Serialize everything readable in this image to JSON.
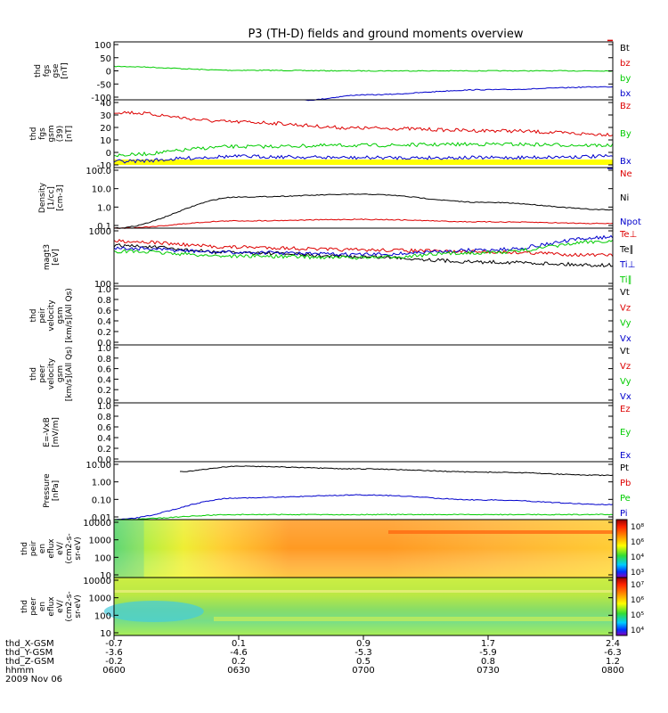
{
  "title": "P3 (TH-D) fields and ground moments overview",
  "colors": {
    "black": "#000000",
    "red": "#dd0000",
    "green": "#00cc00",
    "blue": "#0000cc",
    "yellow": "#ffff00",
    "orange": "#ff8000"
  },
  "panels": [
    {
      "id": "fgs-gse",
      "ylabel": [
        "thd",
        "fgs",
        "gse",
        "[nT]"
      ],
      "ticks": [
        "100",
        "50",
        "0",
        "-50",
        "-100"
      ],
      "legend": [
        {
          "text": "Bt",
          "color": "black"
        },
        {
          "text": "bz",
          "color": "red"
        },
        {
          "text": "by",
          "color": "green"
        },
        {
          "text": "bx",
          "color": "blue"
        }
      ]
    },
    {
      "id": "fgs-gsm",
      "ylabel": [
        "thd",
        "fgs",
        "gsm",
        "(39)",
        "[nT]"
      ],
      "ticks": [
        "40",
        "30",
        "20",
        "10",
        "0",
        "-10"
      ],
      "legend": [
        {
          "text": "Bz",
          "color": "red"
        },
        {
          "text": "By",
          "color": "green"
        },
        {
          "text": "Bx",
          "color": "blue"
        }
      ]
    },
    {
      "id": "density",
      "ylabel": [
        "Density",
        "[1/cc]",
        "[cm-3]"
      ],
      "ticks": [
        "100.0",
        "10.0",
        "1.0",
        "0.1"
      ],
      "legend": [
        {
          "text": "Ne",
          "color": "red"
        },
        {
          "text": "Ni",
          "color": "black"
        },
        {
          "text": "Npot",
          "color": "blue"
        }
      ]
    },
    {
      "id": "temperature",
      "ylabel": [
        "magt3",
        "[eV]"
      ],
      "ticks": [
        "1000",
        "100"
      ],
      "legend": [
        {
          "text": "Te⊥",
          "color": "red"
        },
        {
          "text": "Te∥",
          "color": "black"
        },
        {
          "text": "Ti⊥",
          "color": "blue"
        },
        {
          "text": "Ti∥",
          "color": "green"
        }
      ]
    },
    {
      "id": "ion-velocity",
      "ylabel": [
        "thd",
        "peir",
        "velocity",
        "gsm",
        "[km/s](All Qs)"
      ],
      "ticks": [
        "1.0",
        "0.8",
        "0.6",
        "0.4",
        "0.2",
        "0.0"
      ],
      "legend": [
        {
          "text": "Vt",
          "color": "black"
        },
        {
          "text": "Vz",
          "color": "red"
        },
        {
          "text": "Vy",
          "color": "green"
        },
        {
          "text": "Vx",
          "color": "blue"
        }
      ]
    },
    {
      "id": "electron-velocity",
      "ylabel": [
        "thd",
        "peer",
        "velocity",
        "gsm",
        "[km/s](All Qs)"
      ],
      "ticks": [
        "1.0",
        "0.8",
        "0.6",
        "0.4",
        "0.2",
        "0.0"
      ],
      "legend": [
        {
          "text": "Vt",
          "color": "black"
        },
        {
          "text": "Vz",
          "color": "red"
        },
        {
          "text": "Vy",
          "color": "green"
        },
        {
          "text": "Vx",
          "color": "blue"
        }
      ]
    },
    {
      "id": "efield",
      "ylabel": [
        "E=-VxB",
        "[mV/m]"
      ],
      "ticks": [
        "1.0",
        "0.8",
        "0.6",
        "0.4",
        "0.2",
        "0.0"
      ],
      "legend": [
        {
          "text": "Ez",
          "color": "red"
        },
        {
          "text": "Ey",
          "color": "green"
        },
        {
          "text": "Ex",
          "color": "blue"
        }
      ]
    },
    {
      "id": "pressure",
      "ylabel": [
        "Pressure",
        "[nPa]"
      ],
      "ticks": [
        "10.00",
        "1.00",
        "0.10",
        "0.01"
      ],
      "legend": [
        {
          "text": "Pt",
          "color": "black"
        },
        {
          "text": "Pb",
          "color": "red"
        },
        {
          "text": "Pe",
          "color": "green"
        },
        {
          "text": "Pi",
          "color": "blue"
        }
      ]
    },
    {
      "id": "ion-spectrogram",
      "ylabel": [
        "thd",
        "peir",
        "en",
        "eflux",
        "eV/",
        "(cm2-s-",
        "sr-eV)"
      ],
      "ticks": [
        "10000",
        "1000",
        "100",
        "10"
      ],
      "colorbar": [
        "10⁸",
        "10⁶",
        "10⁴",
        "10³"
      ]
    },
    {
      "id": "electron-spectrogram",
      "ylabel": [
        "thd",
        "peer",
        "en",
        "eflux",
        "eV/",
        "(cm2-s-",
        "sr-eV)"
      ],
      "ticks": [
        "10000",
        "1000",
        "100",
        "10"
      ],
      "colorbar": [
        "10⁷",
        "10⁶",
        "10⁵",
        "10⁴"
      ]
    }
  ],
  "xaxis": {
    "row_labels": [
      "thd_X-GSM",
      "thd_Y-GSM",
      "thd_Z-GSM",
      "hhmm",
      "2009 Nov 06"
    ],
    "columns": [
      [
        "-0.7",
        "-3.6",
        "-0.2",
        "0600"
      ],
      [
        "0.1",
        "-4.6",
        "0.2",
        "0630"
      ],
      [
        "0.9",
        "-5.3",
        "0.5",
        "0700"
      ],
      [
        "1.7",
        "-5.9",
        "0.8",
        "0730"
      ],
      [
        "2.4",
        "-6.3",
        "1.2",
        "0800"
      ]
    ]
  },
  "chart_data": [
    {
      "type": "line",
      "title": "P3 (TH-D) fields and ground moments overview",
      "ylabel": "thd fgs gse [nT]",
      "ylim": [
        -100,
        100
      ],
      "x": [
        "0600",
        "0630",
        "0700",
        "0730",
        "0800"
      ],
      "series": [
        {
          "name": "by",
          "values": [
            15,
            2,
            0,
            0,
            0
          ]
        },
        {
          "name": "bx",
          "values": [
            null,
            null,
            -83,
            -65,
            -55
          ]
        },
        {
          "name": "bz",
          "values": [
            null,
            null,
            null,
            null,
            105
          ]
        }
      ]
    },
    {
      "type": "line",
      "ylabel": "thd fgs gsm (39) [nT]",
      "ylim": [
        -15,
        40
      ],
      "x": [
        "0600",
        "0630",
        "0700",
        "0730",
        "0800"
      ],
      "series": [
        {
          "name": "Bz",
          "values": [
            30,
            22,
            17,
            15,
            12
          ]
        },
        {
          "name": "By",
          "values": [
            -5,
            2,
            3,
            4,
            3
          ]
        },
        {
          "name": "Bx",
          "values": [
            -10,
            -6,
            -7,
            -7,
            -6
          ]
        }
      ]
    },
    {
      "type": "line",
      "ylabel": "Density [1/cc] [cm-3]",
      "yscale": "log",
      "ylim": [
        0.1,
        200
      ],
      "x": [
        "0600",
        "0630",
        "0700",
        "0730",
        "0800"
      ],
      "series": [
        {
          "name": "Ni",
          "values": [
            0.1,
            5,
            7,
            2.5,
            1
          ]
        },
        {
          "name": "Ne",
          "values": [
            0.1,
            0.25,
            0.3,
            0.22,
            0.18
          ]
        },
        {
          "name": "Npot",
          "values": [
            null,
            null,
            null,
            null,
            180
          ]
        }
      ]
    },
    {
      "type": "line",
      "ylabel": "magt3 [eV]",
      "yscale": "log",
      "ylim": [
        100,
        1000
      ],
      "x": [
        "0600",
        "0630",
        "0700",
        "0730",
        "0800"
      ],
      "series": [
        {
          "name": "Te⊥",
          "values": [
            600,
            470,
            420,
            390,
            340
          ]
        },
        {
          "name": "Te∥",
          "values": [
            500,
            380,
            320,
            260,
            230
          ]
        },
        {
          "name": "Ti⊥",
          "values": [
            450,
            380,
            350,
            420,
            700
          ]
        },
        {
          "name": "Ti∥",
          "values": [
            400,
            330,
            310,
            380,
            600
          ]
        }
      ]
    },
    {
      "type": "line",
      "ylabel": "Pressure [nPa]",
      "yscale": "log",
      "ylim": [
        0.01,
        30
      ],
      "x": [
        "0600",
        "0630",
        "0700",
        "0730",
        "0800"
      ],
      "series": [
        {
          "name": "Pt",
          "values": [
            null,
            16,
            11,
            7,
            4.5
          ]
        },
        {
          "name": "Pi",
          "values": [
            0.01,
            0.2,
            0.3,
            0.15,
            0.08
          ]
        },
        {
          "name": "Pe",
          "values": [
            0.01,
            0.02,
            0.02,
            0.02,
            0.02
          ]
        }
      ]
    },
    {
      "type": "heatmap",
      "ylabel": "thd peir en eflux",
      "yscale": "log",
      "ylim": [
        7,
        20000
      ]
    },
    {
      "type": "heatmap",
      "ylabel": "thd peer en eflux",
      "yscale": "log",
      "ylim": [
        7,
        20000
      ]
    }
  ]
}
